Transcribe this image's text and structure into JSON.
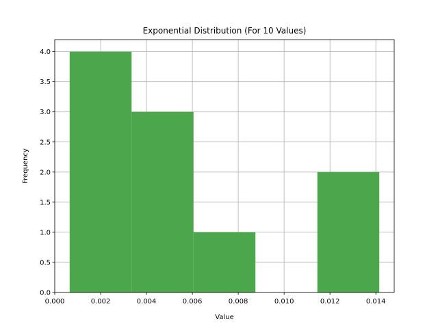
{
  "chart_data": {
    "type": "bar",
    "title": "Exponential Distribution (For 10 Values)",
    "xlabel": "Value",
    "ylabel": "Frequency",
    "xlim": [
      0.0,
      0.0148
    ],
    "ylim": [
      0.0,
      4.2
    ],
    "grid": true,
    "bar_color": "#4ca64c",
    "bins": [
      {
        "x0": 0.00065,
        "x1": 0.00335,
        "count": 4
      },
      {
        "x0": 0.00335,
        "x1": 0.00605,
        "count": 3
      },
      {
        "x0": 0.00605,
        "x1": 0.00875,
        "count": 1
      },
      {
        "x0": 0.00875,
        "x1": 0.01145,
        "count": 0
      },
      {
        "x0": 0.01145,
        "x1": 0.01415,
        "count": 2
      }
    ],
    "x_ticks": [
      {
        "value": 0.0,
        "label": "0.000"
      },
      {
        "value": 0.002,
        "label": "0.002"
      },
      {
        "value": 0.004,
        "label": "0.004"
      },
      {
        "value": 0.006,
        "label": "0.006"
      },
      {
        "value": 0.008,
        "label": "0.008"
      },
      {
        "value": 0.01,
        "label": "0.010"
      },
      {
        "value": 0.012,
        "label": "0.012"
      },
      {
        "value": 0.014,
        "label": "0.014"
      }
    ],
    "y_ticks": [
      {
        "value": 0.0,
        "label": "0.0"
      },
      {
        "value": 0.5,
        "label": "0.5"
      },
      {
        "value": 1.0,
        "label": "1.0"
      },
      {
        "value": 1.5,
        "label": "1.5"
      },
      {
        "value": 2.0,
        "label": "2.0"
      },
      {
        "value": 2.5,
        "label": "2.5"
      },
      {
        "value": 3.0,
        "label": "3.0"
      },
      {
        "value": 3.5,
        "label": "3.5"
      },
      {
        "value": 4.0,
        "label": "4.0"
      }
    ]
  }
}
